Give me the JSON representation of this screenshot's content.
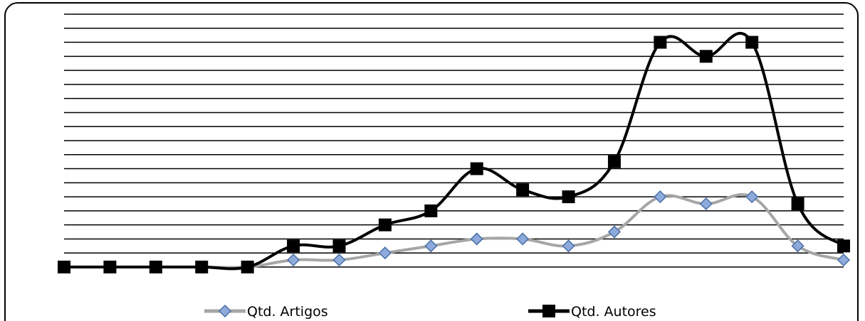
{
  "chart_data": {
    "type": "line",
    "title": "",
    "xlabel": "",
    "ylabel": "",
    "categories": [
      "",
      "",
      "",
      "",
      "",
      "",
      "",
      "",
      "",
      "",
      "",
      "",
      "",
      "",
      "",
      "",
      "",
      ""
    ],
    "ylim": [
      0,
      36
    ],
    "grid": true,
    "legend_position": "bottom",
    "series": [
      {
        "name": "Qtd. Artigos",
        "color": "#a6a6a6",
        "marker": "diamond",
        "marker_fill": "#8eaadb",
        "marker_stroke": "#4a6fa5",
        "values": [
          0,
          0,
          0,
          0,
          0,
          1,
          1,
          2,
          3,
          4,
          4,
          3,
          5,
          10,
          9,
          10,
          3,
          1
        ]
      },
      {
        "name": "Qtd. Autores",
        "color": "#000000",
        "marker": "square",
        "values": [
          0,
          0,
          0,
          0,
          0,
          3,
          3,
          6,
          8,
          14,
          11,
          10,
          15,
          32,
          30,
          32,
          9,
          3
        ]
      }
    ]
  }
}
